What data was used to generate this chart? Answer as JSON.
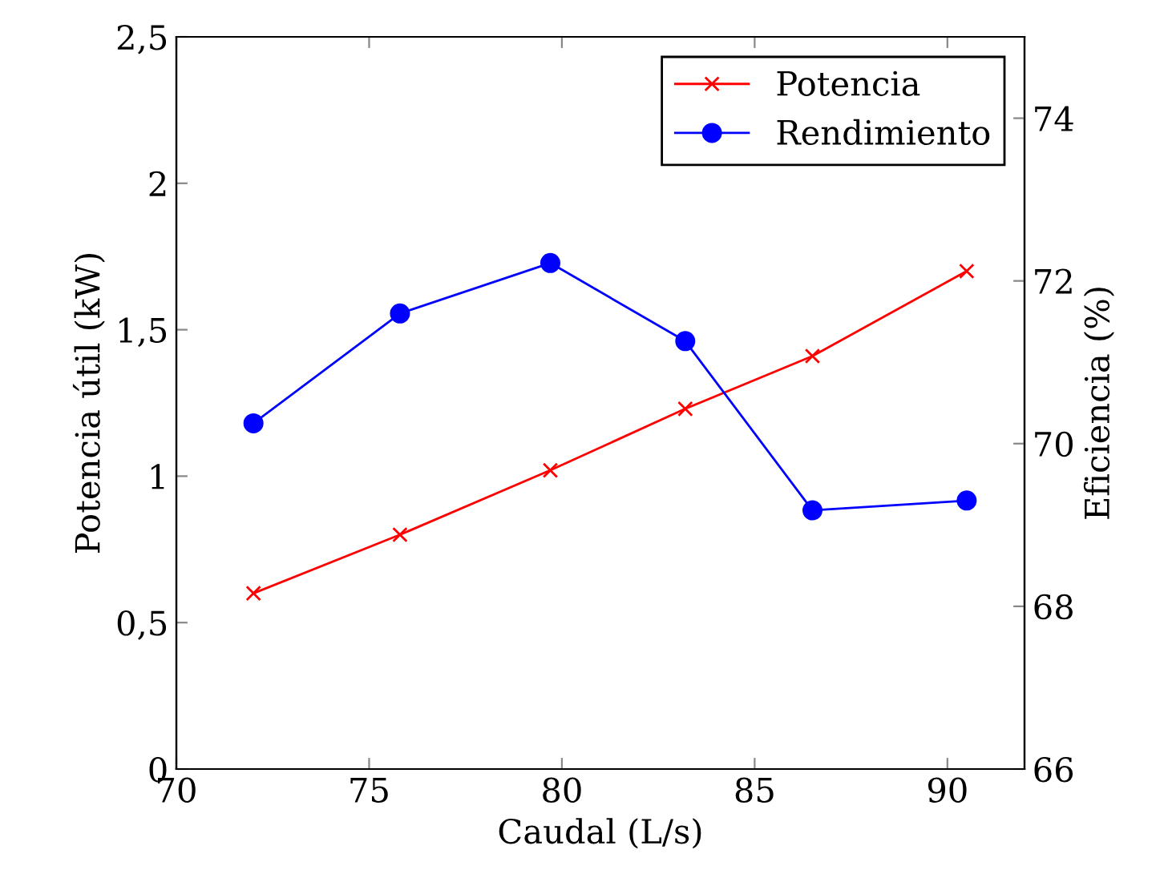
{
  "chart_data": {
    "type": "line",
    "xlabel": "Caudal (L/s)",
    "ylabel": "Potencia útil (kW)",
    "y2label": "Eficiencia (%)",
    "xlim": [
      70,
      92
    ],
    "xticks": [
      70,
      75,
      80,
      85,
      90
    ],
    "ylim": [
      0,
      2.5
    ],
    "yticks": [
      0,
      {
        "value": 0.5,
        "label": "0,5"
      },
      1,
      {
        "value": 1.5,
        "label": "1,5"
      },
      2,
      {
        "value": 2.5,
        "label": "2,5"
      }
    ],
    "y2lim": [
      66,
      75
    ],
    "y2ticks": [
      66,
      68,
      70,
      72,
      74
    ],
    "legend": "top right",
    "grid": false,
    "series": [
      {
        "name": "Potencia",
        "color": "#ff0000",
        "marker": "cross",
        "x": [
          72,
          75.8,
          79.7,
          83.2,
          86.5,
          90.5
        ],
        "values": [
          0.6,
          0.8,
          1.02,
          1.23,
          1.41,
          1.7
        ]
      },
      {
        "name": "Rendimiento",
        "color": "#0000ff",
        "marker": "circle",
        "axis": "y2",
        "x": [
          72,
          75.8,
          79.7,
          83.2,
          86.5,
          90.5
        ],
        "values": [
          70.25,
          71.6,
          72.22,
          71.26,
          69.18,
          69.3
        ]
      }
    ]
  }
}
